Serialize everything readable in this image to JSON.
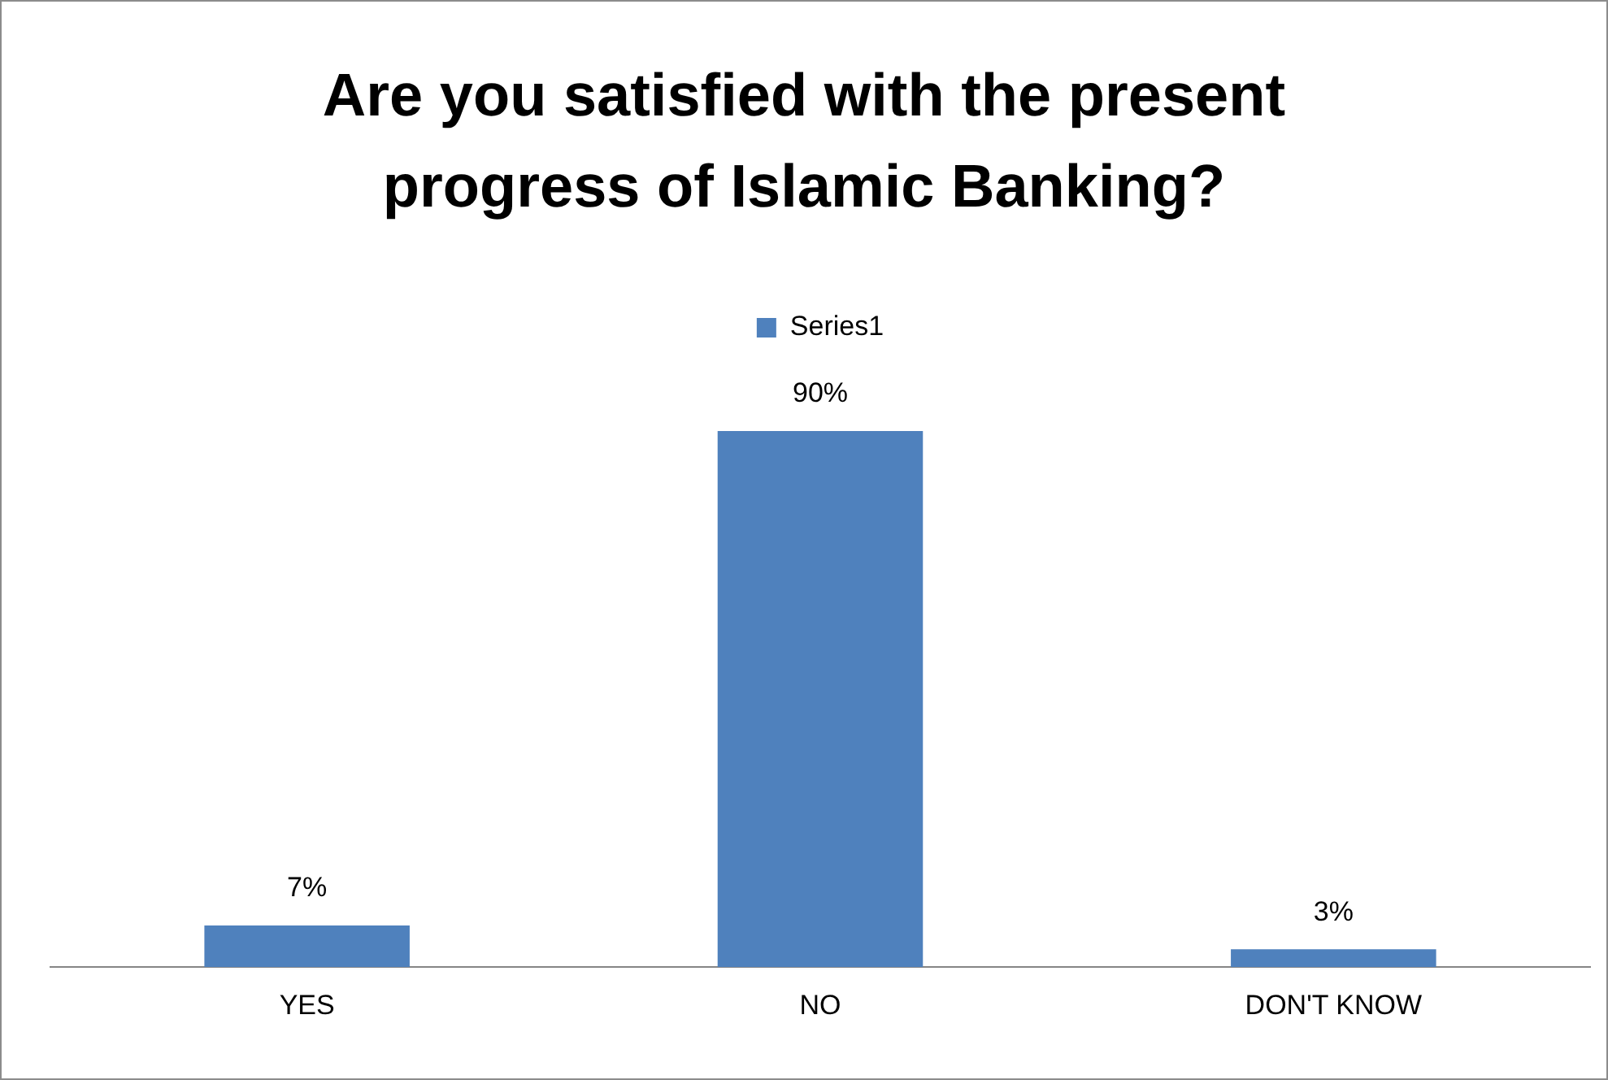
{
  "chart_data": {
    "type": "bar",
    "title": "Are you satisfied with the present progress of Islamic Banking?",
    "categories": [
      "YES",
      "NO",
      "DON'T KNOW"
    ],
    "legend": "top",
    "series": [
      {
        "name": "Series1",
        "color": "#4f81bd",
        "values": [
          7,
          90,
          3
        ],
        "value_labels": [
          "7%",
          "90%",
          "3%"
        ]
      }
    ]
  }
}
